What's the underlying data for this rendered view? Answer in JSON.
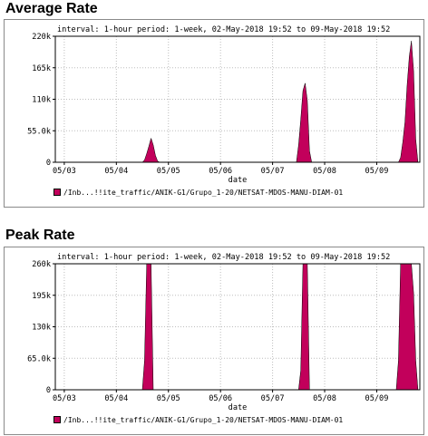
{
  "page": {
    "avg_title": "Average Rate",
    "peak_title": "Peak Rate"
  },
  "colors": {
    "series": "#c2005b",
    "grid": "#bdbdbd",
    "frame": "#000000"
  },
  "chart_data": [
    {
      "type": "area",
      "title": "Average Rate",
      "header": "interval: 1-hour  period: 1-week, 02-May-2018 19:52 to 09-May-2018 19:52",
      "xlabel": "date",
      "ylabel": "",
      "x_ticks": [
        "05/03",
        "05/04",
        "05/05",
        "05/06",
        "05/07",
        "05/08",
        "05/09"
      ],
      "y_ticks": [
        "0",
        "55.0k",
        "110k",
        "165k",
        "220k"
      ],
      "ylim": [
        0,
        220000
      ],
      "xlim": [
        "2018-05-02 19:52",
        "2018-05-09 19:52"
      ],
      "grid": true,
      "series": [
        {
          "name": "/Inb...!!ite_traffic/ANIK-G1/Grupo_1-20/NETSAT-MDOS-MANU-DIAM-01",
          "points": [
            {
              "x": "2018-05-04 12:00",
              "y": 0
            },
            {
              "x": "2018-05-04 13:00",
              "y": 4000
            },
            {
              "x": "2018-05-04 14:00",
              "y": 15000
            },
            {
              "x": "2018-05-04 15:00",
              "y": 28000
            },
            {
              "x": "2018-05-04 16:00",
              "y": 42000
            },
            {
              "x": "2018-05-04 17:00",
              "y": 30000
            },
            {
              "x": "2018-05-04 18:00",
              "y": 12000
            },
            {
              "x": "2018-05-04 19:00",
              "y": 2000
            },
            {
              "x": "2018-05-04 20:00",
              "y": 0
            },
            {
              "x": "2018-05-07 11:00",
              "y": 0
            },
            {
              "x": "2018-05-07 12:00",
              "y": 30000
            },
            {
              "x": "2018-05-07 13:00",
              "y": 75000
            },
            {
              "x": "2018-05-07 14:00",
              "y": 125000
            },
            {
              "x": "2018-05-07 15:00",
              "y": 138000
            },
            {
              "x": "2018-05-07 16:00",
              "y": 108000
            },
            {
              "x": "2018-05-07 17:00",
              "y": 20000
            },
            {
              "x": "2018-05-07 18:00",
              "y": 0
            },
            {
              "x": "2018-05-09 10:00",
              "y": 0
            },
            {
              "x": "2018-05-09 11:00",
              "y": 8000
            },
            {
              "x": "2018-05-09 12:00",
              "y": 35000
            },
            {
              "x": "2018-05-09 13:00",
              "y": 70000
            },
            {
              "x": "2018-05-09 14:00",
              "y": 135000
            },
            {
              "x": "2018-05-09 15:00",
              "y": 185000
            },
            {
              "x": "2018-05-09 16:00",
              "y": 212000
            },
            {
              "x": "2018-05-09 17:00",
              "y": 160000
            },
            {
              "x": "2018-05-09 18:00",
              "y": 40000
            },
            {
              "x": "2018-05-09 19:00",
              "y": 0
            }
          ]
        }
      ]
    },
    {
      "type": "area",
      "title": "Peak Rate",
      "header": "interval: 1-hour  period: 1-week, 02-May-2018 19:52 to 09-May-2018 19:52",
      "xlabel": "date",
      "ylabel": "",
      "x_ticks": [
        "05/03",
        "05/04",
        "05/05",
        "05/06",
        "05/07",
        "05/08",
        "05/09"
      ],
      "y_ticks": [
        "0",
        "65.0k",
        "130k",
        "195k",
        "260k"
      ],
      "ylim": [
        0,
        260000
      ],
      "xlim": [
        "2018-05-02 19:52",
        "2018-05-09 19:52"
      ],
      "grid": true,
      "series": [
        {
          "name": "/Inb...!!ite_traffic/ANIK-G1/Grupo_1-20/NETSAT-MDOS-MANU-DIAM-01",
          "points": [
            {
              "x": "2018-05-04 12:00",
              "y": 0
            },
            {
              "x": "2018-05-04 13:00",
              "y": 60000
            },
            {
              "x": "2018-05-04 14:00",
              "y": 260000
            },
            {
              "x": "2018-05-04 15:00",
              "y": 260000
            },
            {
              "x": "2018-05-04 16:00",
              "y": 260000
            },
            {
              "x": "2018-05-04 17:00",
              "y": 0
            },
            {
              "x": "2018-05-07 12:00",
              "y": 0
            },
            {
              "x": "2018-05-07 13:00",
              "y": 40000
            },
            {
              "x": "2018-05-07 14:00",
              "y": 260000
            },
            {
              "x": "2018-05-07 15:00",
              "y": 260000
            },
            {
              "x": "2018-05-07 16:00",
              "y": 260000
            },
            {
              "x": "2018-05-07 17:00",
              "y": 0
            },
            {
              "x": "2018-05-09 09:00",
              "y": 0
            },
            {
              "x": "2018-05-09 10:00",
              "y": 60000
            },
            {
              "x": "2018-05-09 11:00",
              "y": 260000
            },
            {
              "x": "2018-05-09 12:00",
              "y": 260000
            },
            {
              "x": "2018-05-09 13:00",
              "y": 260000
            },
            {
              "x": "2018-05-09 14:00",
              "y": 260000
            },
            {
              "x": "2018-05-09 15:00",
              "y": 260000
            },
            {
              "x": "2018-05-09 16:00",
              "y": 260000
            },
            {
              "x": "2018-05-09 17:00",
              "y": 200000
            },
            {
              "x": "2018-05-09 18:00",
              "y": 60000
            },
            {
              "x": "2018-05-09 19:00",
              "y": 0
            }
          ]
        }
      ]
    }
  ]
}
